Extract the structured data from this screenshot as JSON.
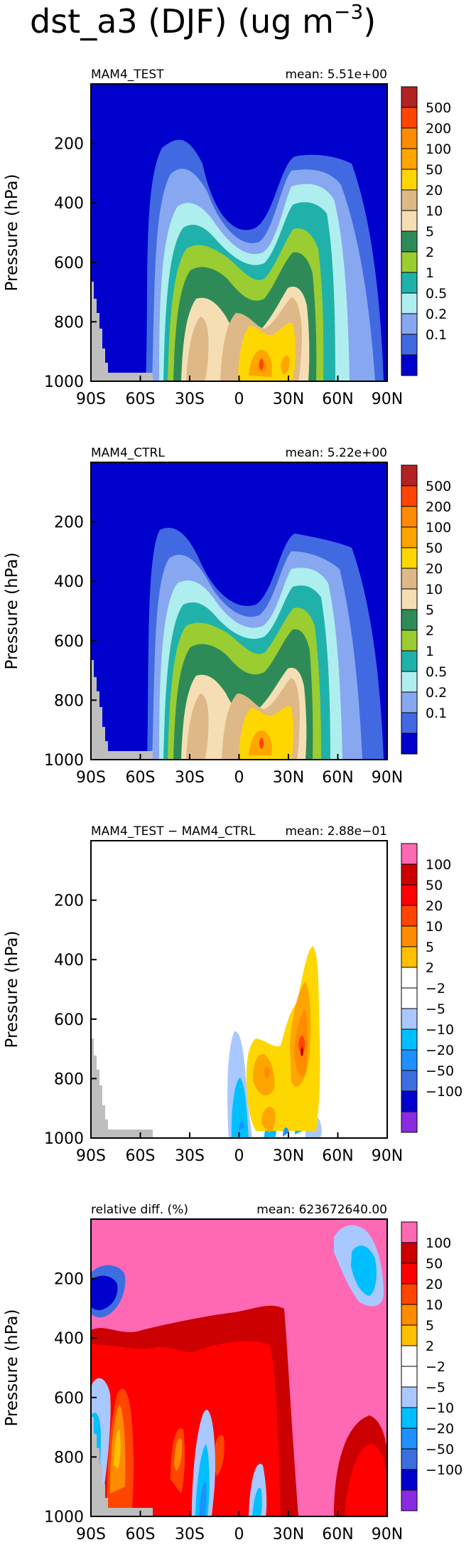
{
  "figure_title": "dst_a3 (DJF) (ug m",
  "figure_title_sup": "−3",
  "figure_title_close": ")",
  "chart_data": [
    {
      "type": "heatmap",
      "id": "test",
      "left_label": "MAM4_TEST",
      "mean_label": "mean: 5.51e+00",
      "ylabel": "Pressure (hPa)",
      "xlim": [
        -90,
        90
      ],
      "ylim": [
        1000,
        0
      ],
      "xticks": [
        "90S",
        "60S",
        "30S",
        "0",
        "30N",
        "60N",
        "90N"
      ],
      "yticks": [
        "200",
        "400",
        "600",
        "800",
        "1000"
      ],
      "colorbar_labels": [
        "500",
        "200",
        "100",
        "50",
        "20",
        "10",
        "5",
        "2",
        "1",
        "0.5",
        "0.2",
        "0.1"
      ],
      "colorbar_colors": [
        "#b22222",
        "#ff4500",
        "#ff8c00",
        "#ffa500",
        "#ffd700",
        "#deb887",
        "#f5deb3",
        "#2e8b57",
        "#9acd32",
        "#20b2aa",
        "#afeeee",
        "#87a8f0",
        "#4169e1",
        "#0000cd"
      ]
    },
    {
      "type": "heatmap",
      "id": "ctrl",
      "left_label": "MAM4_CTRL",
      "mean_label": "mean: 5.22e+00",
      "ylabel": "Pressure (hPa)",
      "xlim": [
        -90,
        90
      ],
      "ylim": [
        1000,
        0
      ],
      "xticks": [
        "90S",
        "60S",
        "30S",
        "0",
        "30N",
        "60N",
        "90N"
      ],
      "yticks": [
        "200",
        "400",
        "600",
        "800",
        "1000"
      ],
      "colorbar_labels": [
        "500",
        "200",
        "100",
        "50",
        "20",
        "10",
        "5",
        "2",
        "1",
        "0.5",
        "0.2",
        "0.1"
      ],
      "colorbar_colors": [
        "#b22222",
        "#ff4500",
        "#ff8c00",
        "#ffa500",
        "#ffd700",
        "#deb887",
        "#f5deb3",
        "#2e8b57",
        "#9acd32",
        "#20b2aa",
        "#afeeee",
        "#87a8f0",
        "#4169e1",
        "#0000cd"
      ]
    },
    {
      "type": "heatmap",
      "id": "diff",
      "left_label": "MAM4_TEST − MAM4_CTRL",
      "mean_label": "mean: 2.88e−01",
      "ylabel": "Pressure (hPa)",
      "xlim": [
        -90,
        90
      ],
      "ylim": [
        1000,
        0
      ],
      "xticks": [
        "90S",
        "60S",
        "30S",
        "0",
        "30N",
        "60N",
        "90N"
      ],
      "yticks": [
        "200",
        "400",
        "600",
        "800",
        "1000"
      ],
      "colorbar_labels": [
        "100",
        "50",
        "20",
        "10",
        "5",
        "2",
        "−2",
        "−5",
        "−10",
        "−20",
        "−50",
        "−100"
      ],
      "colorbar_colors": [
        "#ff69b4",
        "#cc0000",
        "#ff0000",
        "#ff4500",
        "#ff8c00",
        "#ffc000",
        "#ffffff",
        "#ffffff",
        "#a9c8ff",
        "#00bfff",
        "#1e90ff",
        "#3c6ee0",
        "#0000cd",
        "#8a2be2"
      ]
    },
    {
      "type": "heatmap",
      "id": "rel",
      "left_label": "relative diff. (%)",
      "mean_label": "mean: 623672640.00",
      "ylabel": "Pressure (hPa)",
      "xlim": [
        -90,
        90
      ],
      "ylim": [
        1000,
        0
      ],
      "xticks": [
        "90S",
        "60S",
        "30S",
        "0",
        "30N",
        "60N",
        "90N"
      ],
      "yticks": [
        "200",
        "400",
        "600",
        "800",
        "1000"
      ],
      "colorbar_labels": [
        "100",
        "50",
        "20",
        "10",
        "5",
        "2",
        "−2",
        "−5",
        "−10",
        "−20",
        "−50",
        "−100"
      ],
      "colorbar_colors": [
        "#ff69b4",
        "#cc0000",
        "#ff0000",
        "#ff4500",
        "#ff8c00",
        "#ffc000",
        "#ffffff",
        "#ffffff",
        "#a9c8ff",
        "#00bfff",
        "#1e90ff",
        "#3c6ee0",
        "#0000cd",
        "#8a2be2"
      ]
    }
  ]
}
